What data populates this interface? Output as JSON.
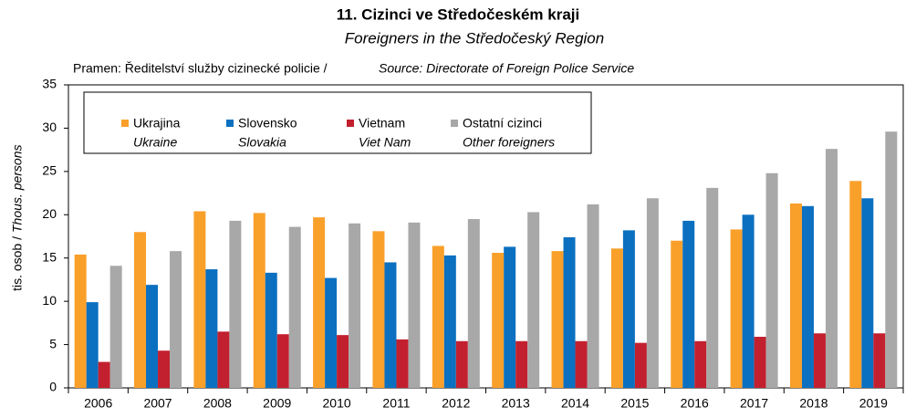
{
  "chart_data": {
    "type": "bar",
    "title": "11. Cizinci ve Středočeském kraji",
    "subtitle": "Foreigners in the Středočeský Region",
    "source": "Pramen: Ředitelství služby cizinecké policie /",
    "source_en": "Source: Directorate of Foreign Police Service",
    "ylabel": "tis. osob /",
    "ylabel_en": "Thous. persons",
    "categories": [
      "2006",
      "2007",
      "2008",
      "2009",
      "2010",
      "2011",
      "2012",
      "2013",
      "2014",
      "2015",
      "2016",
      "2017",
      "2018",
      "2019"
    ],
    "series": [
      {
        "name": "Ukrajina",
        "name_en": "Ukraine",
        "color": "#f9a02a",
        "values": [
          15.4,
          18.0,
          20.4,
          20.2,
          19.7,
          18.1,
          16.4,
          15.6,
          15.8,
          16.1,
          17.0,
          18.3,
          21.3,
          23.9
        ]
      },
      {
        "name": "Slovensko",
        "name_en": "Slovakia",
        "color": "#0b70c0",
        "values": [
          9.9,
          11.9,
          13.7,
          13.3,
          12.7,
          14.5,
          15.3,
          16.3,
          17.4,
          18.2,
          19.3,
          20.0,
          21.0,
          21.9
        ]
      },
      {
        "name": "Vietnam",
        "name_en": "Viet Nam",
        "color": "#c3202f",
        "values": [
          3.0,
          4.3,
          6.5,
          6.2,
          6.1,
          5.6,
          5.4,
          5.4,
          5.4,
          5.2,
          5.4,
          5.9,
          6.3,
          6.3
        ]
      },
      {
        "name": "Ostatní cizinci",
        "name_en": "Other foreigners",
        "color": "#a8a8a8",
        "values": [
          14.1,
          15.8,
          19.3,
          18.6,
          19.0,
          19.1,
          19.5,
          20.3,
          21.2,
          21.9,
          23.1,
          24.8,
          27.6,
          29.6
        ]
      }
    ],
    "ylim": [
      0,
      35
    ],
    "yticks": [
      0,
      5,
      10,
      15,
      20,
      25,
      30,
      35
    ],
    "grid": false
  }
}
